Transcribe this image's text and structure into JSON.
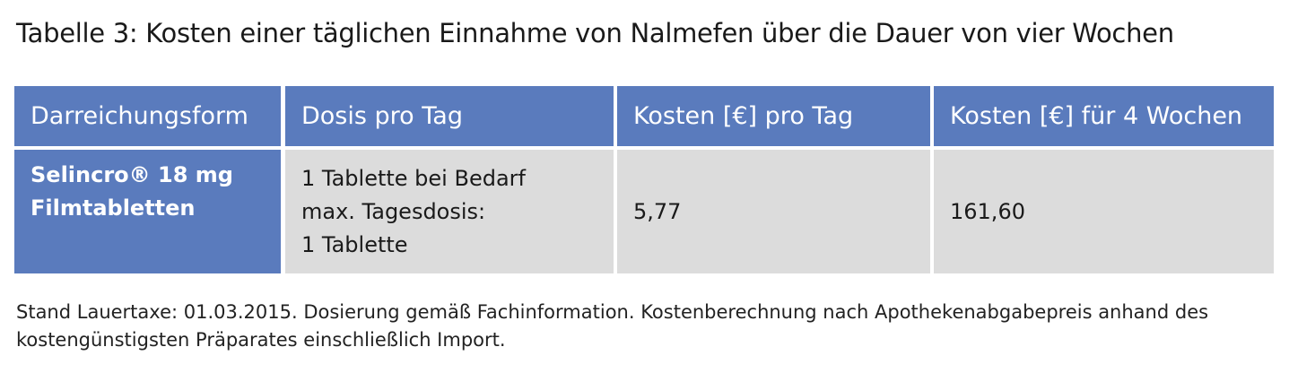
{
  "title": "Tabelle 3: Kosten einer täglichen Einnahme von Nalmefen über die Dauer von vier Wochen",
  "table": {
    "header": [
      "Darreichungsform",
      "Dosis pro Tag",
      "Kosten [€] pro Tag",
      "Kosten [€] für 4 Wochen"
    ],
    "rows": [
      [
        [
          "Selincro® 18 mg",
          "Filmtabletten"
        ],
        [
          "1 Tablette bei Bedarf",
          "max. Tagesdosis:",
          "1 Tablette"
        ],
        [
          "5,77"
        ],
        [
          "161,60"
        ]
      ]
    ]
  },
  "footnote": [
    "Stand Lauertaxe: 01.03.2015. Dosierung gemäß Fachinformation. Kostenberechnung nach Apothekenabgabepreis anhand des",
    "kostengünstigsten Präparates einschließlich Import."
  ]
}
